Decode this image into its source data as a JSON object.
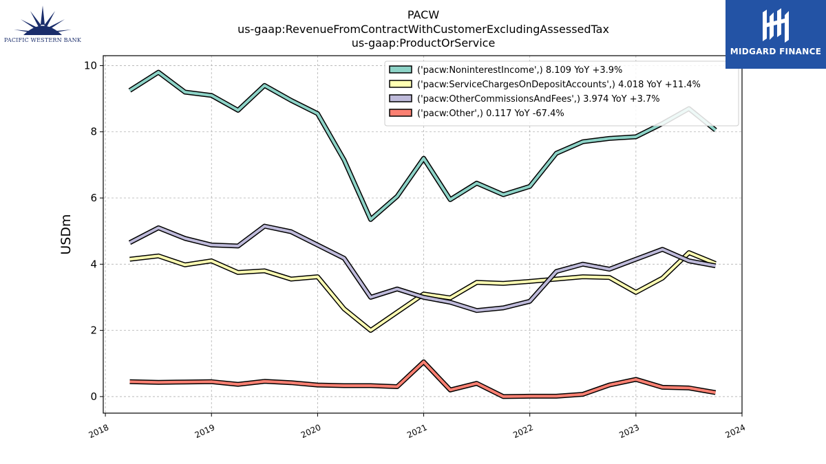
{
  "logos": {
    "left_text": "PACIFIC WESTERN BANK",
    "right_text": "MIDGARD FINANCE"
  },
  "chart_data": {
    "type": "line",
    "title_lines": [
      "PACW",
      "us-gaap:RevenueFromContractWithCustomerExcludingAssessedTax",
      "us-gaap:ProductOrService"
    ],
    "xlabel": "",
    "ylabel": "USDm",
    "xlim": [
      2017.98,
      2024.0
    ],
    "ylim": [
      -0.5,
      10.3
    ],
    "yticks": [
      0,
      2,
      4,
      6,
      8,
      10
    ],
    "xticks": [
      2018,
      2019,
      2020,
      2021,
      2022,
      2023,
      2024
    ],
    "grid": true,
    "legend_position": "top-right",
    "x": [
      2018.23,
      2018.5,
      2018.75,
      2019.0,
      2019.25,
      2019.5,
      2019.75,
      2020.0,
      2020.25,
      2020.5,
      2020.75,
      2021.0,
      2021.25,
      2021.5,
      2021.75,
      2022.0,
      2022.25,
      2022.5,
      2022.75,
      2023.0,
      2023.25,
      2023.5,
      2023.75
    ],
    "series": [
      {
        "name": "('pacw:NoninterestIncome',) 8.109 YoY +3.9%",
        "color": "#8dd3c7",
        "values": [
          9.25,
          9.8,
          9.2,
          9.1,
          8.65,
          9.4,
          8.95,
          8.55,
          7.15,
          5.35,
          6.05,
          7.2,
          5.95,
          6.45,
          6.1,
          6.35,
          7.35,
          7.7,
          7.8,
          7.85,
          8.25,
          8.7,
          8.05
        ]
      },
      {
        "name": "('pacw:ServiceChargesOnDepositAccounts',) 4.018 YoY +11.4%",
        "color": "#ffffb3",
        "values": [
          4.15,
          4.25,
          3.98,
          4.1,
          3.75,
          3.8,
          3.55,
          3.62,
          2.65,
          2.0,
          2.55,
          3.1,
          2.98,
          3.45,
          3.42,
          3.48,
          3.55,
          3.62,
          3.6,
          3.15,
          3.58,
          4.35,
          4.02
        ]
      },
      {
        "name": "('pacw:OtherCommissionsAndFees',) 3.974 YoY +3.7%",
        "color": "#bebada",
        "values": [
          4.65,
          5.1,
          4.78,
          4.58,
          4.55,
          5.15,
          4.98,
          4.58,
          4.18,
          3.0,
          3.25,
          3.0,
          2.85,
          2.6,
          2.68,
          2.88,
          3.78,
          4.0,
          3.85,
          4.15,
          4.45,
          4.1,
          3.95
        ]
      },
      {
        "name": "('pacw:Other',) 0.117 YoY -67.4%",
        "color": "#fb8072",
        "values": [
          0.45,
          0.43,
          0.44,
          0.45,
          0.37,
          0.46,
          0.42,
          0.35,
          0.33,
          0.33,
          0.3,
          1.05,
          0.2,
          0.4,
          0.0,
          0.01,
          0.01,
          0.07,
          0.35,
          0.52,
          0.28,
          0.26,
          0.12
        ]
      }
    ]
  }
}
